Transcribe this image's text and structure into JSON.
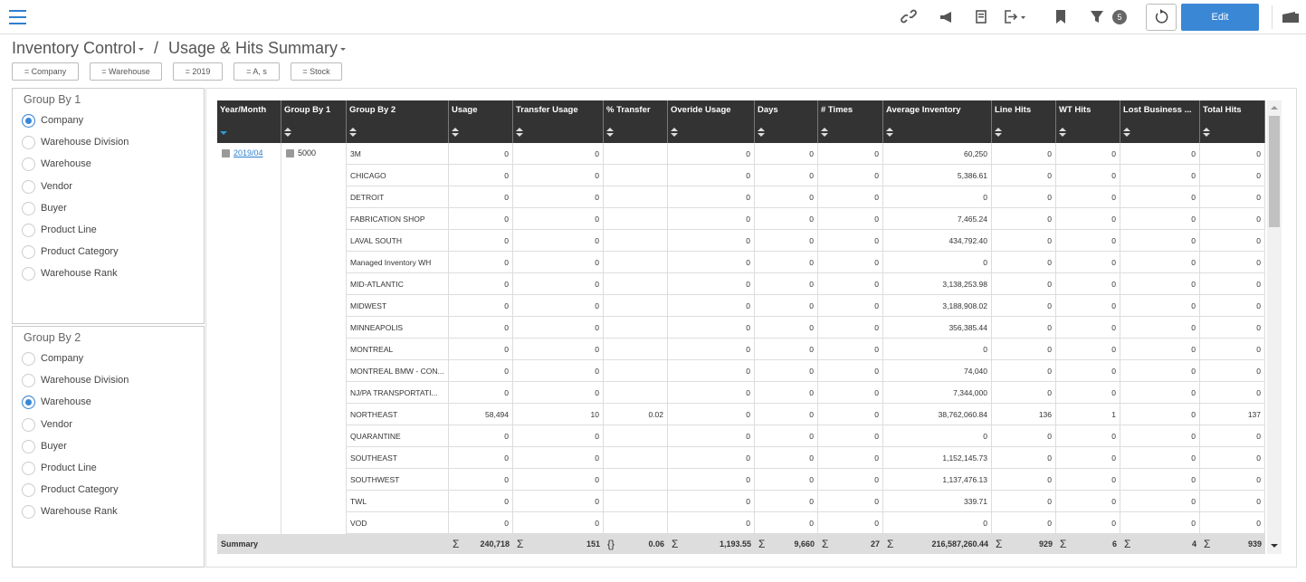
{
  "toolbar": {
    "filter_count": "5",
    "edit": "Edit"
  },
  "header": {
    "breadcrumb": [
      "Inventory Control",
      "Usage & Hits Summary"
    ],
    "separator": "/"
  },
  "filters": [
    "= Company",
    "= Warehouse",
    "= 2019",
    "= A, s",
    "= Stock"
  ],
  "group_by_1": {
    "title": "Group By 1",
    "selected": 0,
    "options": [
      "Company",
      "Warehouse Division",
      "Warehouse",
      "Vendor",
      "Buyer",
      "Product Line",
      "Product Category",
      "Warehouse Rank"
    ]
  },
  "group_by_2": {
    "title": "Group By 2",
    "selected": 2,
    "options": [
      "Company",
      "Warehouse Division",
      "Warehouse",
      "Vendor",
      "Buyer",
      "Product Line",
      "Product Category",
      "Warehouse Rank"
    ]
  },
  "table": {
    "columns": [
      "Year/Month",
      "Group By 1",
      "Group By 2",
      "Usage",
      "Transfer Usage",
      "% Transfer",
      "Overide Usage",
      "Days",
      "# Times",
      "Average Inventory",
      "Line Hits",
      "WT Hits",
      "Lost Business ...",
      "Total Hits"
    ],
    "year_month": "2019/04",
    "group_by_1": "5000",
    "rows": [
      [
        "3M",
        "0",
        "0",
        null,
        "0",
        "0",
        "0",
        "60,250",
        "0",
        "0",
        "0",
        "0"
      ],
      [
        "CHICAGO",
        "0",
        "0",
        null,
        "0",
        "0",
        "0",
        "5,386.61",
        "0",
        "0",
        "0",
        "0"
      ],
      [
        "DETROIT",
        "0",
        "0",
        null,
        "0",
        "0",
        "0",
        "0",
        "0",
        "0",
        "0",
        "0"
      ],
      [
        "FABRICATION SHOP",
        "0",
        "0",
        null,
        "0",
        "0",
        "0",
        "7,465.24",
        "0",
        "0",
        "0",
        "0"
      ],
      [
        "LAVAL SOUTH",
        "0",
        "0",
        null,
        "0",
        "0",
        "0",
        "434,792.40",
        "0",
        "0",
        "0",
        "0"
      ],
      [
        "Managed Inventory WH",
        "0",
        "0",
        null,
        "0",
        "0",
        "0",
        "0",
        "0",
        "0",
        "0",
        "0"
      ],
      [
        "MID-ATLANTIC",
        "0",
        "0",
        null,
        "0",
        "0",
        "0",
        "3,138,253.98",
        "0",
        "0",
        "0",
        "0"
      ],
      [
        "MIDWEST",
        "0",
        "0",
        null,
        "0",
        "0",
        "0",
        "3,188,908.02",
        "0",
        "0",
        "0",
        "0"
      ],
      [
        "MINNEAPOLIS",
        "0",
        "0",
        null,
        "0",
        "0",
        "0",
        "356,385.44",
        "0",
        "0",
        "0",
        "0"
      ],
      [
        "MONTREAL",
        "0",
        "0",
        null,
        "0",
        "0",
        "0",
        "0",
        "0",
        "0",
        "0",
        "0"
      ],
      [
        "MONTREAL BMW - CON...",
        "0",
        "0",
        null,
        "0",
        "0",
        "0",
        "74,040",
        "0",
        "0",
        "0",
        "0"
      ],
      [
        "NJ/PA TRANSPORTATI...",
        "0",
        "0",
        null,
        "0",
        "0",
        "0",
        "7,344,000",
        "0",
        "0",
        "0",
        "0"
      ],
      [
        "NORTHEAST",
        "58,494",
        "10",
        "0.02",
        "0",
        "0",
        "0",
        "38,762,060.84",
        "136",
        "1",
        "0",
        "137"
      ],
      [
        "QUARANTINE",
        "0",
        "0",
        null,
        "0",
        "0",
        "0",
        "0",
        "0",
        "0",
        "0",
        "0"
      ],
      [
        "SOUTHEAST",
        "0",
        "0",
        null,
        "0",
        "0",
        "0",
        "1,152,145.73",
        "0",
        "0",
        "0",
        "0"
      ],
      [
        "SOUTHWEST",
        "0",
        "0",
        null,
        "0",
        "0",
        "0",
        "1,137,476.13",
        "0",
        "0",
        "0",
        "0"
      ],
      [
        "TWL",
        "0",
        "0",
        null,
        "0",
        "0",
        "0",
        "339.71",
        "0",
        "0",
        "0",
        "0"
      ],
      [
        "VOD",
        "0",
        "0",
        null,
        "0",
        "0",
        "0",
        "0",
        "0",
        "0",
        "0",
        "0"
      ]
    ]
  },
  "summary": {
    "label": "Summary",
    "cells": [
      {
        "symbol": "Σ",
        "value": "240,718"
      },
      {
        "symbol": "Σ",
        "value": "151"
      },
      {
        "symbol": "{}",
        "value": "0.06"
      },
      {
        "symbol": "Σ",
        "value": "1,193.55"
      },
      {
        "symbol": "Σ",
        "value": "9,660"
      },
      {
        "symbol": "Σ",
        "value": "27"
      },
      {
        "symbol": "Σ",
        "value": "216,587,260.44"
      },
      {
        "symbol": "Σ",
        "value": "929"
      },
      {
        "symbol": "Σ",
        "value": "6"
      },
      {
        "symbol": "Σ",
        "value": "4"
      },
      {
        "symbol": "Σ",
        "value": "939"
      }
    ]
  }
}
